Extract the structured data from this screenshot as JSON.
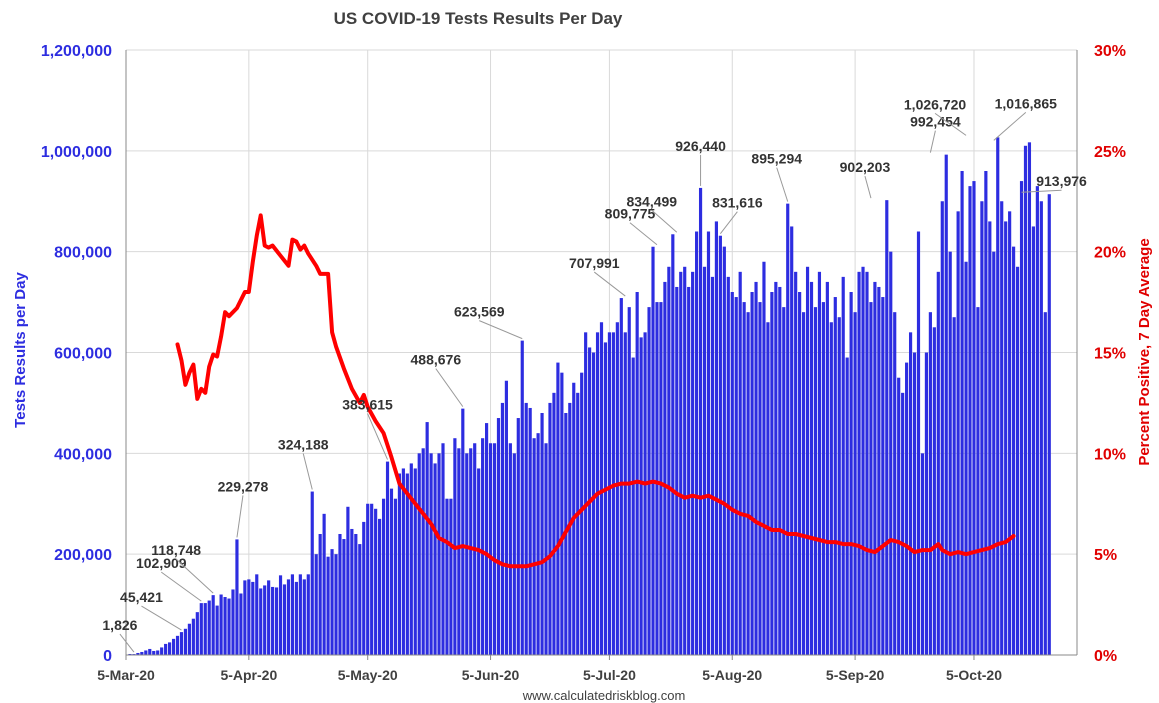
{
  "chart_data": {
    "type": "bar",
    "title": "US COVID-19 Tests Results Per Day",
    "ylabel": "Tests Results per Day",
    "y2label": "Percent Positive, 7 Day Average",
    "source": "www.calculatedriskblog.com",
    "ylim": [
      0,
      1200000
    ],
    "y2lim": [
      0,
      30
    ],
    "x_start": "2020-03-05",
    "x_end": "2020-10-31",
    "left_ticks": [
      "0",
      "200,000",
      "400,000",
      "600,000",
      "800,000",
      "1,000,000",
      "1,200,000"
    ],
    "right_ticks": [
      "0%",
      "5%",
      "10%",
      "15%",
      "20%",
      "25%",
      "30%"
    ],
    "x_ticks": [
      "5-Mar-20",
      "5-Apr-20",
      "5-May-20",
      "5-Jun-20",
      "5-Jul-20",
      "5-Aug-20",
      "5-Sep-20",
      "5-Oct-20"
    ],
    "colors": {
      "bars": "#2d2de0",
      "line": "#ff0000",
      "grid": "#d9d9d9"
    },
    "series": [
      {
        "name": "Tests Results per Day",
        "type": "bar",
        "start": "2020-03-06",
        "values": [
          2000,
          1826,
          4000,
          6000,
          9000,
          12000,
          8000,
          9000,
          15000,
          22000,
          25000,
          32000,
          38000,
          45421,
          52000,
          62000,
          72000,
          85000,
          102909,
          103000,
          108000,
          118748,
          98000,
          120000,
          115000,
          112000,
          130000,
          229278,
          122000,
          148000,
          150000,
          145000,
          160000,
          132000,
          138000,
          148000,
          135000,
          134000,
          158000,
          140000,
          150000,
          160000,
          145000,
          160000,
          150000,
          160000,
          324188,
          200000,
          240000,
          280000,
          195000,
          210000,
          200000,
          240000,
          230000,
          294000,
          250000,
          240000,
          220000,
          264000,
          300000,
          300000,
          290000,
          270000,
          310000,
          383615,
          330000,
          310000,
          360000,
          370000,
          360000,
          380000,
          370000,
          400000,
          410000,
          462000,
          400000,
          380000,
          400000,
          420000,
          310000,
          310000,
          430000,
          410000,
          488676,
          400000,
          410000,
          420000,
          370000,
          430000,
          460000,
          420000,
          420000,
          470000,
          500000,
          544000,
          420000,
          400000,
          470000,
          623569,
          500000,
          490000,
          430000,
          440000,
          480000,
          420000,
          500000,
          520000,
          580000,
          560000,
          480000,
          500000,
          540000,
          520000,
          560000,
          640000,
          610000,
          600000,
          640000,
          660000,
          620000,
          640000,
          640000,
          660000,
          707991,
          640000,
          690000,
          590000,
          720000,
          630000,
          640000,
          690000,
          809775,
          700000,
          700000,
          740000,
          770000,
          834499,
          730000,
          760000,
          770000,
          730000,
          760000,
          840000,
          926440,
          770000,
          840000,
          750000,
          860000,
          831616,
          810000,
          750000,
          720000,
          710000,
          760000,
          700000,
          680000,
          720000,
          740000,
          700000,
          780000,
          660000,
          720000,
          740000,
          730000,
          690000,
          895294,
          850000,
          760000,
          720000,
          680000,
          770000,
          740000,
          690000,
          760000,
          700000,
          740000,
          660000,
          710000,
          670000,
          750000,
          590000,
          720000,
          680000,
          760000,
          770000,
          760000,
          700000,
          740000,
          730000,
          710000,
          902203,
          800000,
          680000,
          550000,
          520000,
          580000,
          640000,
          600000,
          840000,
          400000,
          600000,
          680000,
          650000,
          760000,
          900000,
          992454,
          800000,
          670000,
          880000,
          960000,
          780000,
          930000,
          940000,
          690000,
          900000,
          960000,
          860000,
          800000,
          1026720,
          900000,
          860000,
          880000,
          810000,
          770000,
          940000,
          1010000,
          1016865,
          850000,
          930000,
          900000,
          680000,
          913976
        ]
      },
      {
        "name": "Percent Positive, 7 Day Average",
        "type": "line",
        "points": [
          [
            "2020-03-18",
            15.4
          ],
          [
            "2020-03-19",
            14.6
          ],
          [
            "2020-03-20",
            13.4
          ],
          [
            "2020-03-21",
            14.0
          ],
          [
            "2020-03-22",
            14.4
          ],
          [
            "2020-03-23",
            12.7
          ],
          [
            "2020-03-24",
            13.2
          ],
          [
            "2020-03-25",
            13.0
          ],
          [
            "2020-03-26",
            14.3
          ],
          [
            "2020-03-27",
            14.9
          ],
          [
            "2020-03-28",
            14.8
          ],
          [
            "2020-03-29",
            15.8
          ],
          [
            "2020-03-30",
            17.0
          ],
          [
            "2020-03-31",
            16.8
          ],
          [
            "2020-04-02",
            17.2
          ],
          [
            "2020-04-04",
            18.0
          ],
          [
            "2020-04-05",
            18.0
          ],
          [
            "2020-04-06",
            19.5
          ],
          [
            "2020-04-07",
            20.8
          ],
          [
            "2020-04-08",
            21.8
          ],
          [
            "2020-04-09",
            20.3
          ],
          [
            "2020-04-10",
            20.2
          ],
          [
            "2020-04-11",
            20.3
          ],
          [
            "2020-04-13",
            19.8
          ],
          [
            "2020-04-15",
            19.3
          ],
          [
            "2020-04-16",
            20.6
          ],
          [
            "2020-04-17",
            20.5
          ],
          [
            "2020-04-18",
            20.1
          ],
          [
            "2020-04-19",
            20.3
          ],
          [
            "2020-04-20",
            19.9
          ],
          [
            "2020-04-22",
            19.3
          ],
          [
            "2020-04-23",
            18.9
          ],
          [
            "2020-04-25",
            18.9
          ],
          [
            "2020-04-26",
            16.0
          ],
          [
            "2020-04-27",
            15.3
          ],
          [
            "2020-04-29",
            14.2
          ],
          [
            "2020-05-01",
            13.2
          ],
          [
            "2020-05-03",
            12.5
          ],
          [
            "2020-05-04",
            12.9
          ],
          [
            "2020-05-05",
            12.3
          ],
          [
            "2020-05-07",
            11.6
          ],
          [
            "2020-05-09",
            11.0
          ],
          [
            "2020-05-11",
            9.8
          ],
          [
            "2020-05-13",
            8.5
          ],
          [
            "2020-05-15",
            8.0
          ],
          [
            "2020-05-17",
            7.5
          ],
          [
            "2020-05-19",
            7.0
          ],
          [
            "2020-05-21",
            6.5
          ],
          [
            "2020-05-23",
            5.8
          ],
          [
            "2020-05-25",
            5.6
          ],
          [
            "2020-05-27",
            5.3
          ],
          [
            "2020-05-29",
            5.4
          ],
          [
            "2020-05-31",
            5.3
          ],
          [
            "2020-06-02",
            5.2
          ],
          [
            "2020-06-04",
            5.0
          ],
          [
            "2020-06-06",
            4.7
          ],
          [
            "2020-06-08",
            4.5
          ],
          [
            "2020-06-10",
            4.4
          ],
          [
            "2020-06-12",
            4.4
          ],
          [
            "2020-06-14",
            4.4
          ],
          [
            "2020-06-16",
            4.5
          ],
          [
            "2020-06-18",
            4.6
          ],
          [
            "2020-06-20",
            4.9
          ],
          [
            "2020-06-22",
            5.4
          ],
          [
            "2020-06-24",
            6.1
          ],
          [
            "2020-06-26",
            6.8
          ],
          [
            "2020-06-28",
            7.2
          ],
          [
            "2020-06-30",
            7.6
          ],
          [
            "2020-07-02",
            8.0
          ],
          [
            "2020-07-04",
            8.2
          ],
          [
            "2020-07-06",
            8.4
          ],
          [
            "2020-07-08",
            8.5
          ],
          [
            "2020-07-10",
            8.5
          ],
          [
            "2020-07-12",
            8.6
          ],
          [
            "2020-07-14",
            8.5
          ],
          [
            "2020-07-16",
            8.6
          ],
          [
            "2020-07-18",
            8.5
          ],
          [
            "2020-07-20",
            8.3
          ],
          [
            "2020-07-22",
            8.0
          ],
          [
            "2020-07-24",
            7.8
          ],
          [
            "2020-07-26",
            7.9
          ],
          [
            "2020-07-28",
            7.8
          ],
          [
            "2020-07-30",
            7.9
          ],
          [
            "2020-08-01",
            7.7
          ],
          [
            "2020-08-03",
            7.5
          ],
          [
            "2020-08-05",
            7.2
          ],
          [
            "2020-08-07",
            7.0
          ],
          [
            "2020-08-09",
            6.9
          ],
          [
            "2020-08-11",
            6.6
          ],
          [
            "2020-08-13",
            6.4
          ],
          [
            "2020-08-15",
            6.2
          ],
          [
            "2020-08-17",
            6.2
          ],
          [
            "2020-08-19",
            6.0
          ],
          [
            "2020-08-21",
            6.0
          ],
          [
            "2020-08-23",
            5.9
          ],
          [
            "2020-08-25",
            5.8
          ],
          [
            "2020-08-27",
            5.7
          ],
          [
            "2020-08-29",
            5.6
          ],
          [
            "2020-08-31",
            5.6
          ],
          [
            "2020-09-02",
            5.5
          ],
          [
            "2020-09-04",
            5.5
          ],
          [
            "2020-09-06",
            5.4
          ],
          [
            "2020-09-08",
            5.2
          ],
          [
            "2020-09-10",
            5.1
          ],
          [
            "2020-09-12",
            5.4
          ],
          [
            "2020-09-14",
            5.7
          ],
          [
            "2020-09-16",
            5.6
          ],
          [
            "2020-09-18",
            5.4
          ],
          [
            "2020-09-20",
            5.1
          ],
          [
            "2020-09-22",
            5.2
          ],
          [
            "2020-09-24",
            5.2
          ],
          [
            "2020-09-26",
            5.5
          ],
          [
            "2020-09-27",
            5.2
          ],
          [
            "2020-09-29",
            5.0
          ],
          [
            "2020-10-01",
            5.1
          ],
          [
            "2020-10-03",
            5.0
          ],
          [
            "2020-10-05",
            5.1
          ],
          [
            "2020-10-07",
            5.2
          ],
          [
            "2020-10-09",
            5.3
          ],
          [
            "2020-10-11",
            5.5
          ],
          [
            "2020-10-13",
            5.6
          ],
          [
            "2020-10-15",
            5.9
          ]
        ]
      }
    ],
    "annotations": [
      {
        "date": "2020-03-07",
        "value": 1826,
        "label": "1,826"
      },
      {
        "date": "2020-03-19",
        "value": 45421,
        "label": "45,421"
      },
      {
        "date": "2020-03-24",
        "value": 102909,
        "label": "102,909"
      },
      {
        "date": "2020-03-27",
        "value": 118748,
        "label": "118,748"
      },
      {
        "date": "2020-04-02",
        "value": 229278,
        "label": "229,278"
      },
      {
        "date": "2020-04-21",
        "value": 324188,
        "label": "324,188"
      },
      {
        "date": "2020-05-10",
        "value": 383615,
        "label": "383,615"
      },
      {
        "date": "2020-05-29",
        "value": 488676,
        "label": "488,676"
      },
      {
        "date": "2020-06-13",
        "value": 623569,
        "label": "623,569"
      },
      {
        "date": "2020-07-09",
        "value": 707991,
        "label": "707,991"
      },
      {
        "date": "2020-07-17",
        "value": 809775,
        "label": "809,775"
      },
      {
        "date": "2020-07-22",
        "value": 834499,
        "label": "834,499"
      },
      {
        "date": "2020-07-28",
        "value": 926440,
        "label": "926,440"
      },
      {
        "date": "2020-08-02",
        "value": 831616,
        "label": "831,616"
      },
      {
        "date": "2020-08-19",
        "value": 895294,
        "label": "895,294"
      },
      {
        "date": "2020-09-09",
        "value": 902203,
        "label": "902,203"
      },
      {
        "date": "2020-09-24",
        "value": 992454,
        "label": "992,454"
      },
      {
        "date": "2020-10-03",
        "value": 1026720,
        "label": "1,026,720"
      },
      {
        "date": "2020-10-10",
        "value": 1016865,
        "label": "1,016,865"
      },
      {
        "date": "2020-10-17",
        "value": 913976,
        "label": "913,976"
      }
    ]
  }
}
